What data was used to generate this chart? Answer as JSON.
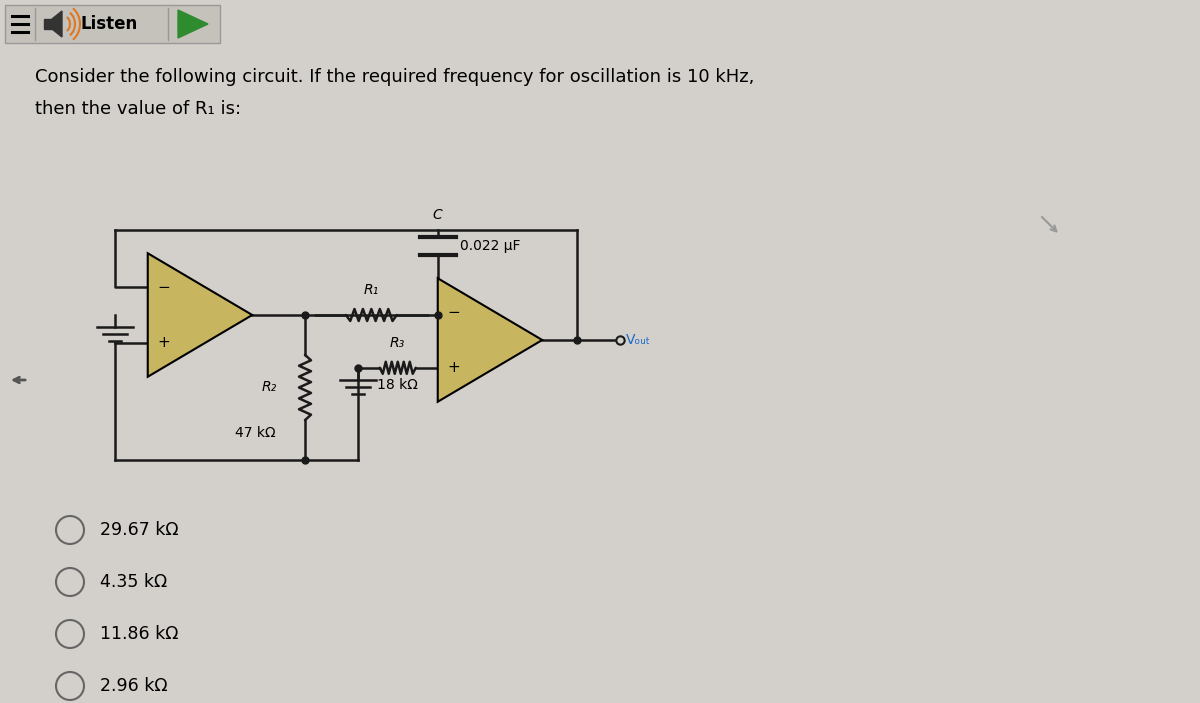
{
  "bg_color": "#d3cfca",
  "title_line1": "Consider the following circuit. If the required frequency for oscillation is 10 kHz,",
  "title_line2": "then the value of R₁ is:",
  "listen_text": "Listen",
  "options": [
    "29.67 kΩ",
    "4.35 kΩ",
    "11.86 kΩ",
    "2.96 kΩ"
  ],
  "opamp_color": "#c8b560",
  "wire_color": "#1a1a1a",
  "R1_label": "R₁",
  "R2_label": "R₂",
  "R3_label": "R₃",
  "R2_value": "47 kΩ",
  "R3_value": "18 kΩ",
  "C_label": "C",
  "C_value": "0.022 μF",
  "Vout_label": "Vₒᵤₜ",
  "Vout_color": "#1a6bcc",
  "toolbar_bg": "#c5c1bb",
  "listen_color": "#e07820",
  "play_color": "#2e8b2e"
}
